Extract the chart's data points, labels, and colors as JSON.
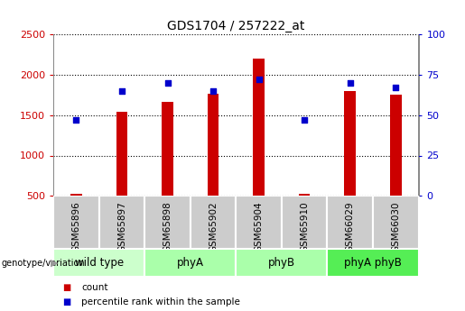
{
  "title": "GDS1704 / 257222_at",
  "samples": [
    "GSM65896",
    "GSM65897",
    "GSM65898",
    "GSM65902",
    "GSM65904",
    "GSM65910",
    "GSM66029",
    "GSM66030"
  ],
  "counts": [
    530,
    1545,
    1665,
    1760,
    2200,
    530,
    1800,
    1750
  ],
  "percentile_ranks": [
    47,
    65,
    70,
    65,
    72,
    47,
    70,
    67
  ],
  "groups": [
    {
      "label": "wild type",
      "span": [
        0,
        2
      ],
      "color": "#ccffcc"
    },
    {
      "label": "phyA",
      "span": [
        2,
        4
      ],
      "color": "#aaffaa"
    },
    {
      "label": "phyB",
      "span": [
        4,
        6
      ],
      "color": "#aaffaa"
    },
    {
      "label": "phyA phyB",
      "span": [
        6,
        8
      ],
      "color": "#55ee55"
    }
  ],
  "bar_color": "#cc0000",
  "dot_color": "#0000cc",
  "ylim_left": [
    500,
    2500
  ],
  "ylim_right": [
    0,
    100
  ],
  "yticks_left": [
    500,
    1000,
    1500,
    2000,
    2500
  ],
  "yticks_right": [
    0,
    25,
    50,
    75,
    100
  ],
  "bar_width": 0.25,
  "background_color": "#ffffff",
  "grid_color": "#000000",
  "sample_box_color": "#cccccc",
  "sample_box_edge": "#ffffff"
}
